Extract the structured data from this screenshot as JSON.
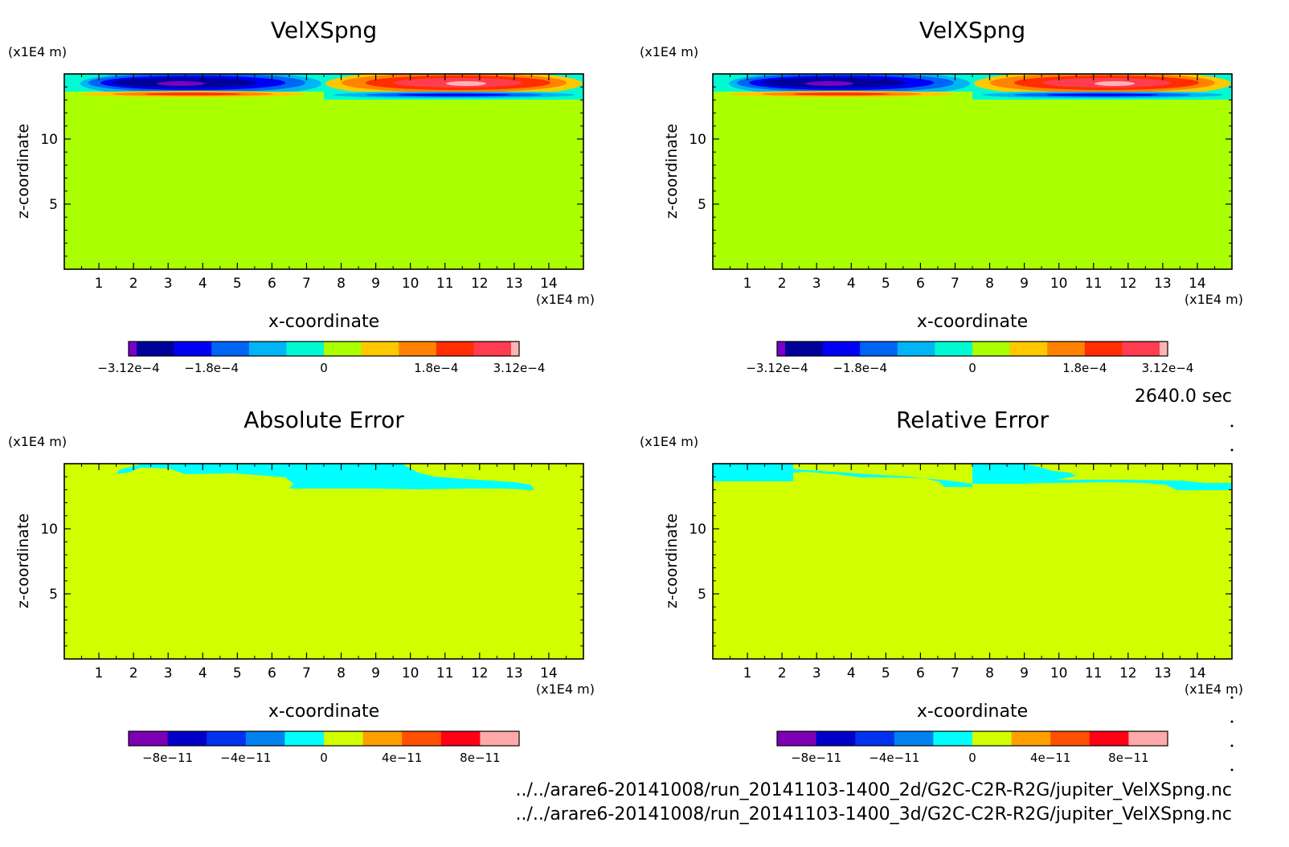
{
  "time_label": "2640.0 sec",
  "files": [
    "../../arare6-20141008/run_20141103-1400_2d/G2C-C2R-R2G/jupiter_VelXSpng.nc",
    "../../arare6-20141008/run_20141103-1400_3d/G2C-C2R-R2G/jupiter_VelXSpng.nc"
  ],
  "chart_data": [
    {
      "type": "heatmap",
      "title": "VelXSpng",
      "xlabel": "x-coordinate",
      "ylabel": "z-coordinate",
      "x_unit": "(x1E4 m)",
      "z_unit": "(x1E4 m)",
      "xlim": [
        0,
        15
      ],
      "zlim": [
        0,
        15
      ],
      "x_ticks": [
        "1",
        "2",
        "3",
        "4",
        "5",
        "6",
        "7",
        "8",
        "9",
        "10",
        "11",
        "12",
        "13",
        "14"
      ],
      "z_ticks": [
        "5",
        "10"
      ],
      "colorbar": {
        "range": [
          -0.000312,
          0.000312
        ],
        "tick_labels": [
          "-3.12e-4",
          "-1.8e-4",
          "0",
          "1.8e-4",
          "3.12e-4"
        ],
        "colors": [
          "#7a00c8",
          "#00009b",
          "#0000f5",
          "#0064f5",
          "#00b4f5",
          "#00fad2",
          "#aaff00",
          "#ffc800",
          "#ff8200",
          "#ff2d00",
          "#ff3c50",
          "#ffb4b4"
        ]
      },
      "background": "#aaff00",
      "features": "negative core ~x 2-6 near top (blue/purple), positive core ~x 10-13 near top (orange/red/pink); thin opposite-sign layer just below each core"
    },
    {
      "type": "heatmap",
      "title": "VelXSpng",
      "xlabel": "x-coordinate",
      "ylabel": "z-coordinate",
      "x_unit": "(x1E4 m)",
      "z_unit": "(x1E4 m)",
      "xlim": [
        0,
        15
      ],
      "zlim": [
        0,
        15
      ],
      "x_ticks": [
        "1",
        "2",
        "3",
        "4",
        "5",
        "6",
        "7",
        "8",
        "9",
        "10",
        "11",
        "12",
        "13",
        "14"
      ],
      "z_ticks": [
        "5",
        "10"
      ],
      "colorbar": {
        "range": [
          -0.000312,
          0.000312
        ],
        "tick_labels": [
          "-3.12e-4",
          "-1.8e-4",
          "0",
          "1.8e-4",
          "3.12e-4"
        ],
        "colors": [
          "#7a00c8",
          "#00009b",
          "#0000f5",
          "#0064f5",
          "#00b4f5",
          "#00fad2",
          "#aaff00",
          "#ffc800",
          "#ff8200",
          "#ff2d00",
          "#ff3c50",
          "#ffb4b4"
        ]
      },
      "background": "#aaff00",
      "features": "identical to left panel"
    },
    {
      "type": "heatmap",
      "title": "Absolute Error",
      "xlabel": "x-coordinate",
      "ylabel": "z-coordinate",
      "x_unit": "(x1E4 m)",
      "z_unit": "(x1E4 m)",
      "xlim": [
        0,
        15
      ],
      "zlim": [
        0,
        15
      ],
      "x_ticks": [
        "1",
        "2",
        "3",
        "4",
        "5",
        "6",
        "7",
        "8",
        "9",
        "10",
        "11",
        "12",
        "13",
        "14"
      ],
      "z_ticks": [
        "5",
        "10"
      ],
      "colorbar": {
        "tick_labels": [
          "-8e-11",
          "-4e-11",
          "0",
          "4e-11",
          "8e-11"
        ],
        "colors": [
          "#7d00b4",
          "#0000c8",
          "#0032f0",
          "#0082f0",
          "#00ffff",
          "#d2ff00",
          "#ffa000",
          "#ff5000",
          "#ff0014",
          "#ffaaaa"
        ]
      },
      "background": "#d2ff00",
      "features": "small cyan (slightly negative) region along top edge from x~2 to x~13"
    },
    {
      "type": "heatmap",
      "title": "Relative Error",
      "xlabel": "x-coordinate",
      "ylabel": "z-coordinate",
      "x_unit": "(x1E4 m)",
      "z_unit": "(x1E4 m)",
      "xlim": [
        0,
        15
      ],
      "zlim": [
        0,
        15
      ],
      "x_ticks": [
        "1",
        "2",
        "3",
        "4",
        "5",
        "6",
        "7",
        "8",
        "9",
        "10",
        "11",
        "12",
        "13",
        "14"
      ],
      "z_ticks": [
        "5",
        "10"
      ],
      "colorbar": {
        "tick_labels": [
          "-8e-11",
          "-4e-11",
          "0",
          "4e-11",
          "8e-11"
        ],
        "colors": [
          "#7d00b4",
          "#0000c8",
          "#0032f0",
          "#0082f0",
          "#00ffff",
          "#d2ff00",
          "#ffa000",
          "#ff5000",
          "#ff0014",
          "#ffaaaa"
        ]
      },
      "background": "#d2ff00",
      "features": "cyan bands along top edge across full x range"
    }
  ]
}
